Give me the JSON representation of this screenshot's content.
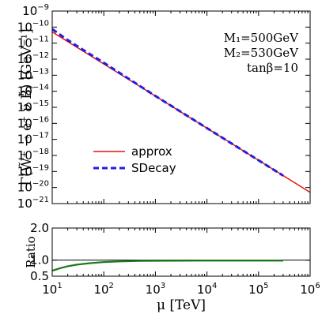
{
  "chart_data": [
    {
      "type": "line",
      "panel": "main",
      "ylabel": "Γ(W̃⁺ → e⁺ ν̃ B̃) [GeV⁻¹]",
      "yscale": "log",
      "xscale": "log",
      "xlim": [
        10,
        1000000
      ],
      "ylim": [
        1e-21,
        1e-09
      ],
      "ytick_exponents": [
        -9,
        -10,
        -11,
        -12,
        -13,
        -14,
        -15,
        -16,
        -17,
        -18,
        -19,
        -20,
        -21
      ],
      "ytick_base": "10",
      "annotations": [
        "M₁=500GeV",
        "M₂=530GeV",
        "tanβ=10"
      ],
      "legend_position": "lower-left",
      "series": [
        {
          "name": "approx",
          "color": "#e8120c",
          "style": "solid",
          "x": [
            10,
            100,
            1000,
            10000,
            100000,
            1000000
          ],
          "y": [
            5e-11,
            5e-13,
            5e-15,
            5e-17,
            5e-19,
            5e-21
          ]
        },
        {
          "name": "SDecay",
          "color": "#1f1fe0",
          "style": "dashed",
          "x": [
            10,
            20,
            50,
            100,
            1000,
            10000,
            100000,
            300000
          ],
          "y": [
            7.5e-11,
            1.55e-11,
            2.4e-12,
            6e-13,
            5.1e-15,
            5.05e-17,
            5e-19,
            5.5e-20
          ]
        }
      ]
    },
    {
      "type": "line",
      "panel": "ratio",
      "ylabel": "Ratio",
      "xlabel": "μ [TeV]",
      "xscale": "log",
      "xlim": [
        10,
        1000000
      ],
      "ylim": [
        0.5,
        2.0
      ],
      "yticks": [
        "2.0",
        "1.0",
        "0.5"
      ],
      "xtick_exponents": [
        1,
        2,
        3,
        4,
        5,
        6
      ],
      "xtick_base": "10",
      "reference_line": 1.0,
      "series": [
        {
          "name": "",
          "color": "#1a7a1a",
          "style": "solid",
          "x": [
            10,
            15,
            20,
            30,
            50,
            70,
            100,
            200,
            500,
            1000,
            10000,
            100000,
            300000
          ],
          "y": [
            0.67,
            0.76,
            0.81,
            0.86,
            0.9,
            0.92,
            0.94,
            0.96,
            0.975,
            0.98,
            0.985,
            0.985,
            0.985
          ]
        }
      ]
    }
  ]
}
